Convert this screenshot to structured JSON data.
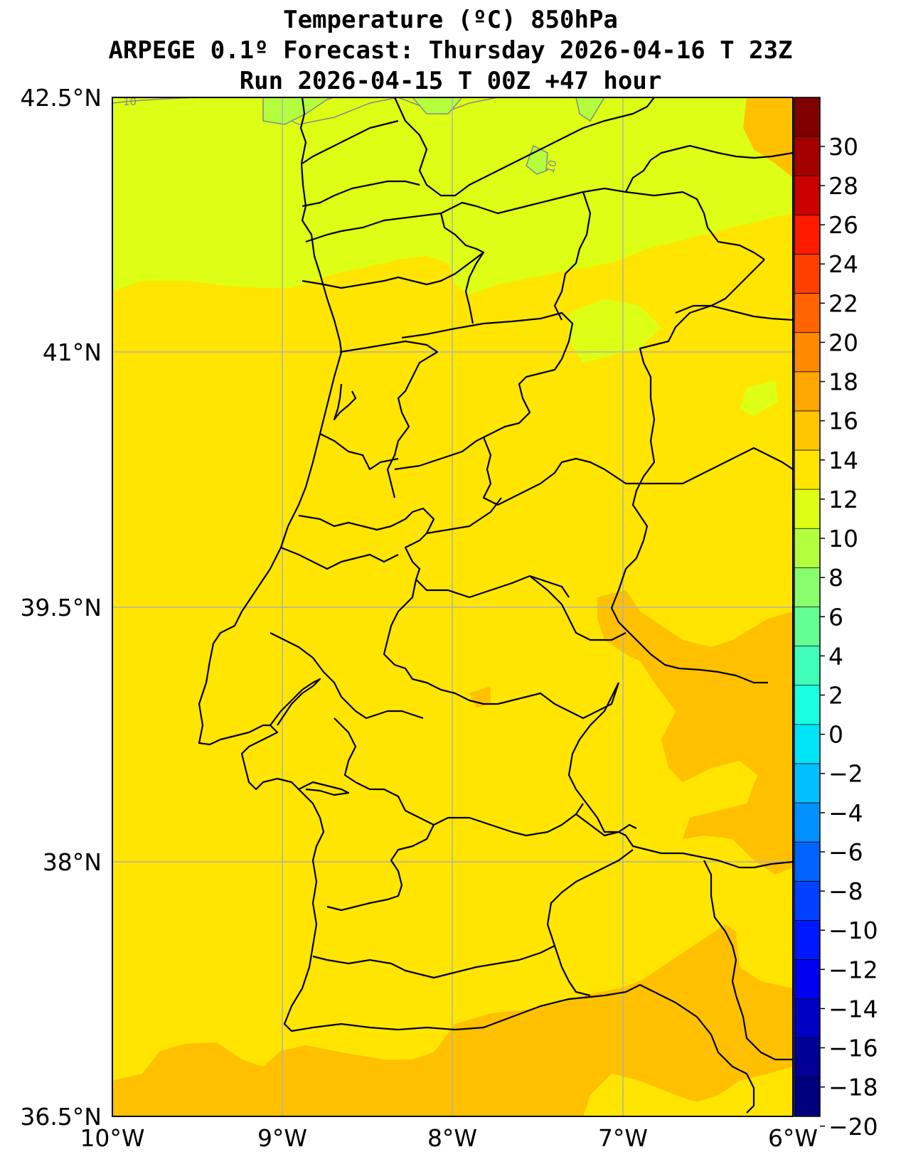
{
  "title": {
    "line1": "Temperature (ºC) 850hPa",
    "line2": "ARPEGE 0.1º Forecast: Thursday 2026-04-16 T 23Z",
    "line3": "Run 2026-04-15 T 00Z +47 hour"
  },
  "map": {
    "lon_ticks": [
      "10°W",
      "9°W",
      "8°W",
      "7°W",
      "6°W"
    ],
    "lat_ticks": [
      "42.5°N",
      "41°N",
      "39.5°N",
      "38°N",
      "36.5°N"
    ],
    "contour_label": "10",
    "base_field_color": "#ffe500",
    "cool_field_color": "#dcff15",
    "warm_field_color": "#ffc000",
    "coast_color": "#000000",
    "grid_color": "#b0b0b0"
  },
  "colorbar": {
    "labels": [
      "30",
      "28",
      "26",
      "24",
      "22",
      "20",
      "18",
      "16",
      "14",
      "12",
      "10",
      "8",
      "6",
      "4",
      "2",
      "0",
      "−2",
      "−4",
      "−6",
      "−8",
      "−10",
      "−12",
      "−14",
      "−16",
      "−18",
      "−20"
    ],
    "colors": [
      "#800000",
      "#a50000",
      "#cc0000",
      "#ff1a00",
      "#ff3f00",
      "#ff6400",
      "#ff8a00",
      "#ffa700",
      "#ffc600",
      "#ffe500",
      "#dcff15",
      "#b3ff3e",
      "#8aff6d",
      "#64ff93",
      "#3fffb8",
      "#18ffe2",
      "#00e4f8",
      "#00c0ff",
      "#0090ff",
      "#0064ff",
      "#0040ff",
      "#0018ff",
      "#0000f1",
      "#0000c4",
      "#000096",
      "#00007f"
    ]
  }
}
